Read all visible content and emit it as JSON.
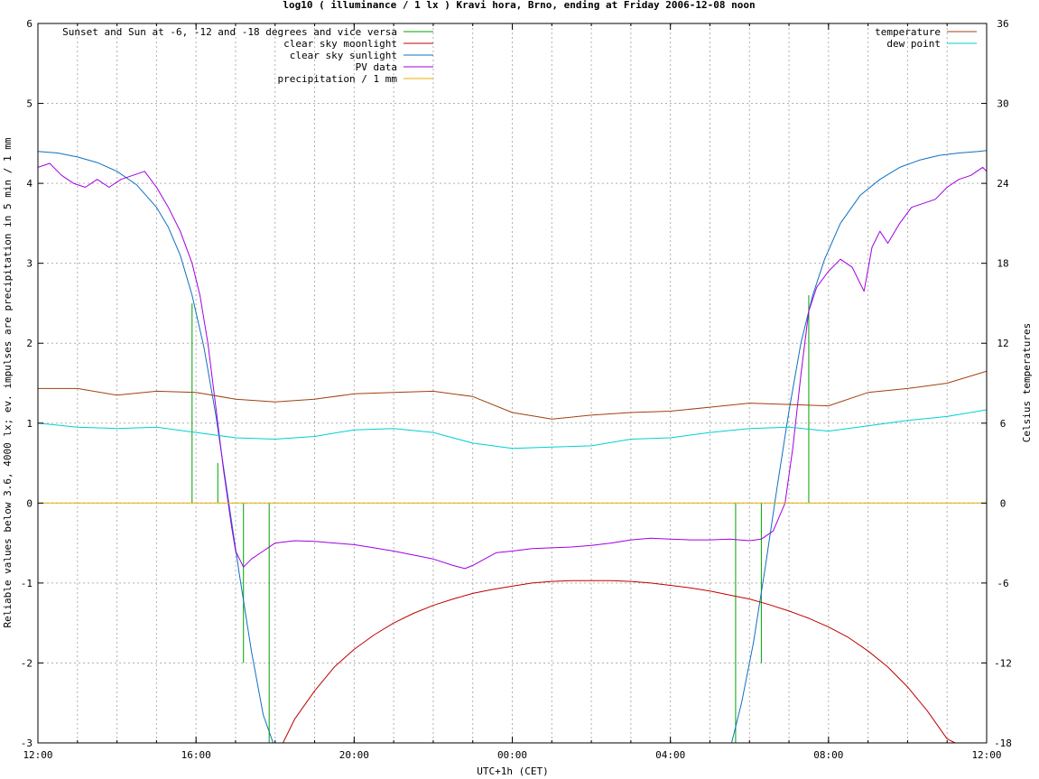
{
  "chart_data": {
    "type": "line",
    "title": "log10 ( illuminance / 1 lx ) Kravi hora, Brno, ending at Friday 2006-12-08 noon",
    "xlabel": "UTC+1h (CET)",
    "ylabel": "Reliable values below 3.6, 4000 lx; ev. impulses are precipitation in 5 min / 1 mm",
    "y2label": "Celsius temperatures",
    "xlim": [
      0,
      24
    ],
    "ylim": [
      -3,
      6
    ],
    "y2lim": [
      -18,
      36
    ],
    "grid": true,
    "x_ticks": [
      {
        "v": 0,
        "label": "12:00"
      },
      {
        "v": 4,
        "label": "16:00"
      },
      {
        "v": 8,
        "label": "20:00"
      },
      {
        "v": 12,
        "label": "00:00"
      },
      {
        "v": 16,
        "label": "04:00"
      },
      {
        "v": 20,
        "label": "08:00"
      },
      {
        "v": 24,
        "label": "12:00"
      }
    ],
    "y_ticks": [
      -3,
      -2,
      -1,
      0,
      1,
      2,
      3,
      4,
      5,
      6
    ],
    "y2_ticks": [
      -18,
      -12,
      -6,
      0,
      6,
      12,
      18,
      24,
      30,
      36
    ],
    "legend_left": [
      {
        "name": "Sunset and Sun at -6, -12 and -18 degrees and vice versa",
        "color": "#00a000"
      },
      {
        "name": "clear sky moonlight",
        "color": "#c00000"
      },
      {
        "name": "clear sky sunlight",
        "color": "#1070c0"
      },
      {
        "name": "PV data",
        "color": "#a000e0"
      },
      {
        "name": "precipitation / 1 mm",
        "color": "#e0b000"
      }
    ],
    "legend_right": [
      {
        "name": "temperature",
        "color": "#a04010"
      },
      {
        "name": "dew point",
        "color": "#00d0d0"
      }
    ],
    "sun_events": [
      {
        "x": 3.9,
        "y": 2.5
      },
      {
        "x": 4.55,
        "y": 0.5
      },
      {
        "x": 5.2,
        "y": -2.0
      },
      {
        "x": 5.85,
        "y": -3.0
      },
      {
        "x": 17.65,
        "y": -3.0
      },
      {
        "x": 18.3,
        "y": -2.0
      },
      {
        "x": 18.95,
        "y": 0.0
      },
      {
        "x": 19.5,
        "y": 2.6
      }
    ],
    "series": [
      {
        "name": "clear sky sunlight",
        "axis": "y1",
        "color": "#1070c0",
        "x": [
          0,
          0.5,
          1,
          1.5,
          2,
          2.5,
          3,
          3.3,
          3.6,
          3.9,
          4.2,
          4.5,
          4.8,
          5.1,
          5.4,
          5.7,
          5.95,
          null,
          17.55,
          17.8,
          18.1,
          18.4,
          18.7,
          19.0,
          19.3,
          19.6,
          19.9,
          20.3,
          20.8,
          21.3,
          21.8,
          22.3,
          22.8,
          23.3,
          23.8,
          24
        ],
        "y": [
          4.4,
          4.38,
          4.33,
          4.26,
          4.15,
          3.98,
          3.7,
          3.45,
          3.1,
          2.6,
          1.95,
          1.1,
          0.1,
          -0.9,
          -1.85,
          -2.65,
          -3.0,
          null,
          -3.0,
          -2.5,
          -1.75,
          -0.8,
          0.2,
          1.15,
          2.0,
          2.6,
          3.05,
          3.5,
          3.85,
          4.05,
          4.2,
          4.29,
          4.35,
          4.38,
          4.4,
          4.41
        ]
      },
      {
        "name": "clear sky moonlight",
        "axis": "y1",
        "color": "#c00000",
        "x": [
          6.2,
          6.5,
          7,
          7.5,
          8,
          8.5,
          9,
          9.5,
          10,
          10.5,
          11,
          11.5,
          12,
          12.5,
          13,
          13.5,
          14,
          14.5,
          15,
          15.5,
          16,
          16.5,
          17,
          17.5,
          18,
          18.5,
          19,
          19.5,
          20,
          20.5,
          21,
          21.5,
          22,
          22.5,
          23,
          23.2
        ],
        "y": [
          -3.0,
          -2.7,
          -2.35,
          -2.05,
          -1.83,
          -1.65,
          -1.5,
          -1.38,
          -1.28,
          -1.2,
          -1.13,
          -1.08,
          -1.04,
          -1.0,
          -0.98,
          -0.97,
          -0.97,
          -0.97,
          -0.98,
          -1.0,
          -1.03,
          -1.06,
          -1.1,
          -1.15,
          -1.2,
          -1.27,
          -1.35,
          -1.44,
          -1.55,
          -1.68,
          -1.85,
          -2.05,
          -2.3,
          -2.6,
          -2.95,
          -3.0
        ]
      },
      {
        "name": "PV data",
        "axis": "y1",
        "color": "#a000e0",
        "x": [
          0,
          0.3,
          0.6,
          0.9,
          1.2,
          1.5,
          1.8,
          2.1,
          2.4,
          2.7,
          3.0,
          3.3,
          3.6,
          3.9,
          4.1,
          4.3,
          4.5,
          4.7,
          4.9,
          5.0,
          5.2,
          5.4,
          5.7,
          6.0,
          6.5,
          7.0,
          7.5,
          8.0,
          8.5,
          9.0,
          9.5,
          10.0,
          10.5,
          10.8,
          11.0,
          11.3,
          11.6,
          12.0,
          12.5,
          13.0,
          13.5,
          14.0,
          14.5,
          15.0,
          15.5,
          16.0,
          16.5,
          17.0,
          17.5,
          18.0,
          18.3,
          18.6,
          18.9,
          19.1,
          19.3,
          19.5,
          19.7,
          20.0,
          20.3,
          20.6,
          20.9,
          21.1,
          21.3,
          21.5,
          21.8,
          22.1,
          22.4,
          22.7,
          23.0,
          23.3,
          23.6,
          23.9,
          24.0
        ],
        "y": [
          4.2,
          4.25,
          4.1,
          4.0,
          3.95,
          4.05,
          3.95,
          4.05,
          4.1,
          4.15,
          3.95,
          3.7,
          3.4,
          3.0,
          2.6,
          2.0,
          1.2,
          0.4,
          -0.3,
          -0.6,
          -0.8,
          -0.7,
          -0.6,
          -0.5,
          -0.47,
          -0.48,
          -0.5,
          -0.52,
          -0.56,
          -0.6,
          -0.65,
          -0.7,
          -0.78,
          -0.82,
          -0.78,
          -0.7,
          -0.62,
          -0.6,
          -0.57,
          -0.56,
          -0.55,
          -0.53,
          -0.5,
          -0.46,
          -0.44,
          -0.45,
          -0.46,
          -0.46,
          -0.45,
          -0.47,
          -0.45,
          -0.35,
          0.0,
          0.7,
          1.6,
          2.4,
          2.7,
          2.9,
          3.05,
          2.95,
          2.65,
          3.2,
          3.4,
          3.25,
          3.5,
          3.7,
          3.75,
          3.8,
          3.95,
          4.05,
          4.1,
          4.2,
          4.15
        ]
      },
      {
        "name": "temperature",
        "axis": "y2",
        "color": "#a04010",
        "x": [
          0,
          1,
          2,
          3,
          4,
          5,
          6,
          7,
          8,
          9,
          10,
          11,
          12,
          13,
          14,
          15,
          16,
          17,
          18,
          19,
          20,
          21,
          22,
          23,
          24
        ],
        "y": [
          8.6,
          8.6,
          8.1,
          8.4,
          8.3,
          7.8,
          7.6,
          7.8,
          8.2,
          8.3,
          8.4,
          8.0,
          6.8,
          6.3,
          6.6,
          6.8,
          6.9,
          7.2,
          7.5,
          7.4,
          7.3,
          8.3,
          8.6,
          9.0,
          9.9
        ]
      },
      {
        "name": "dew point",
        "axis": "y2",
        "color": "#00d0d0",
        "x": [
          0,
          1,
          2,
          3,
          4,
          5,
          6,
          7,
          8,
          9,
          10,
          11,
          12,
          13,
          14,
          15,
          16,
          17,
          18,
          19,
          20,
          21,
          22,
          23,
          24
        ],
        "y": [
          6.0,
          5.7,
          5.6,
          5.7,
          5.3,
          4.9,
          4.8,
          5.0,
          5.5,
          5.6,
          5.3,
          4.5,
          4.1,
          4.2,
          4.3,
          4.8,
          4.9,
          5.3,
          5.6,
          5.7,
          5.4,
          5.8,
          6.2,
          6.5,
          7.0
        ]
      },
      {
        "name": "precipitation / 1 mm",
        "axis": "y1",
        "color": "#e0b000",
        "x": [
          0,
          24
        ],
        "y": [
          0,
          0
        ]
      }
    ]
  }
}
